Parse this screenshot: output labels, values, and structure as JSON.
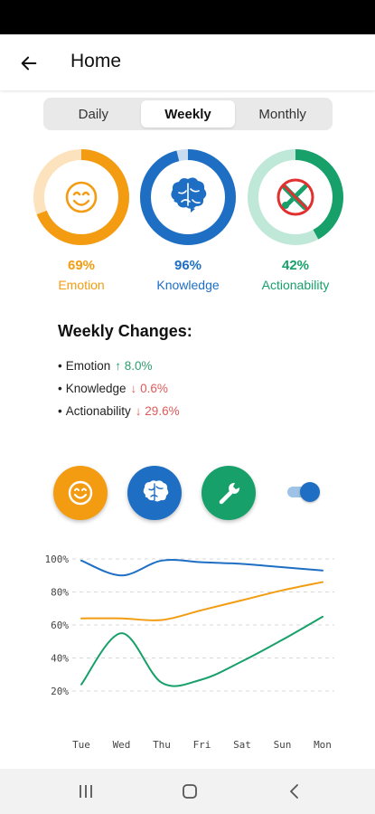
{
  "header": {
    "title": "Home"
  },
  "period_tabs": [
    {
      "label": "Daily",
      "active": false
    },
    {
      "label": "Weekly",
      "active": true
    },
    {
      "label": "Monthly",
      "active": false
    }
  ],
  "metrics": [
    {
      "name": "Emotion",
      "percent": "69%",
      "value": 0.69,
      "color": "#f39c12",
      "track": "#fde3bd",
      "icon": "smiley-icon"
    },
    {
      "name": "Knowledge",
      "percent": "96%",
      "value": 0.96,
      "color": "#1e6fc4",
      "track": "#c9dcf2",
      "icon": "brain-icon"
    },
    {
      "name": "Actionability",
      "percent": "42%",
      "value": 0.42,
      "color": "#17a06a",
      "track": "#bfe8d8",
      "icon": "no-tools-icon"
    }
  ],
  "weekly_changes": {
    "title": "Weekly Changes:",
    "items": [
      {
        "label": "Emotion",
        "arrow": "↑",
        "value": "8.0%",
        "direction": "up"
      },
      {
        "label": "Knowledge",
        "arrow": "↓",
        "value": "0.6%",
        "direction": "down"
      },
      {
        "label": "Actionability",
        "arrow": "↓",
        "value": "29.6%",
        "direction": "down"
      }
    ]
  },
  "category_buttons": [
    {
      "icon": "smiley-icon",
      "color": "#f39c12"
    },
    {
      "icon": "brain-icon",
      "color": "#1e6fc4"
    },
    {
      "icon": "wrench-icon",
      "color": "#17a06a"
    }
  ],
  "toggle": {
    "on": true,
    "color": "#1e6fc4"
  },
  "chart_data": {
    "type": "line",
    "x": [
      "Tue",
      "Wed",
      "Thu",
      "Fri",
      "Sat",
      "Sun",
      "Mon"
    ],
    "yticks": [
      "100%",
      "80%",
      "60%",
      "40%",
      "20%"
    ],
    "ylim": [
      20,
      100
    ],
    "grid": true,
    "series": [
      {
        "color": "#1e6fc4",
        "values": [
          99,
          90,
          99,
          98,
          97,
          95,
          93
        ]
      },
      {
        "color": "#f39c12",
        "values": [
          64,
          64,
          63,
          69,
          75,
          81,
          86
        ]
      },
      {
        "color": "#17a06a",
        "values": [
          24,
          55,
          25,
          27,
          38,
          51,
          65
        ]
      }
    ]
  }
}
